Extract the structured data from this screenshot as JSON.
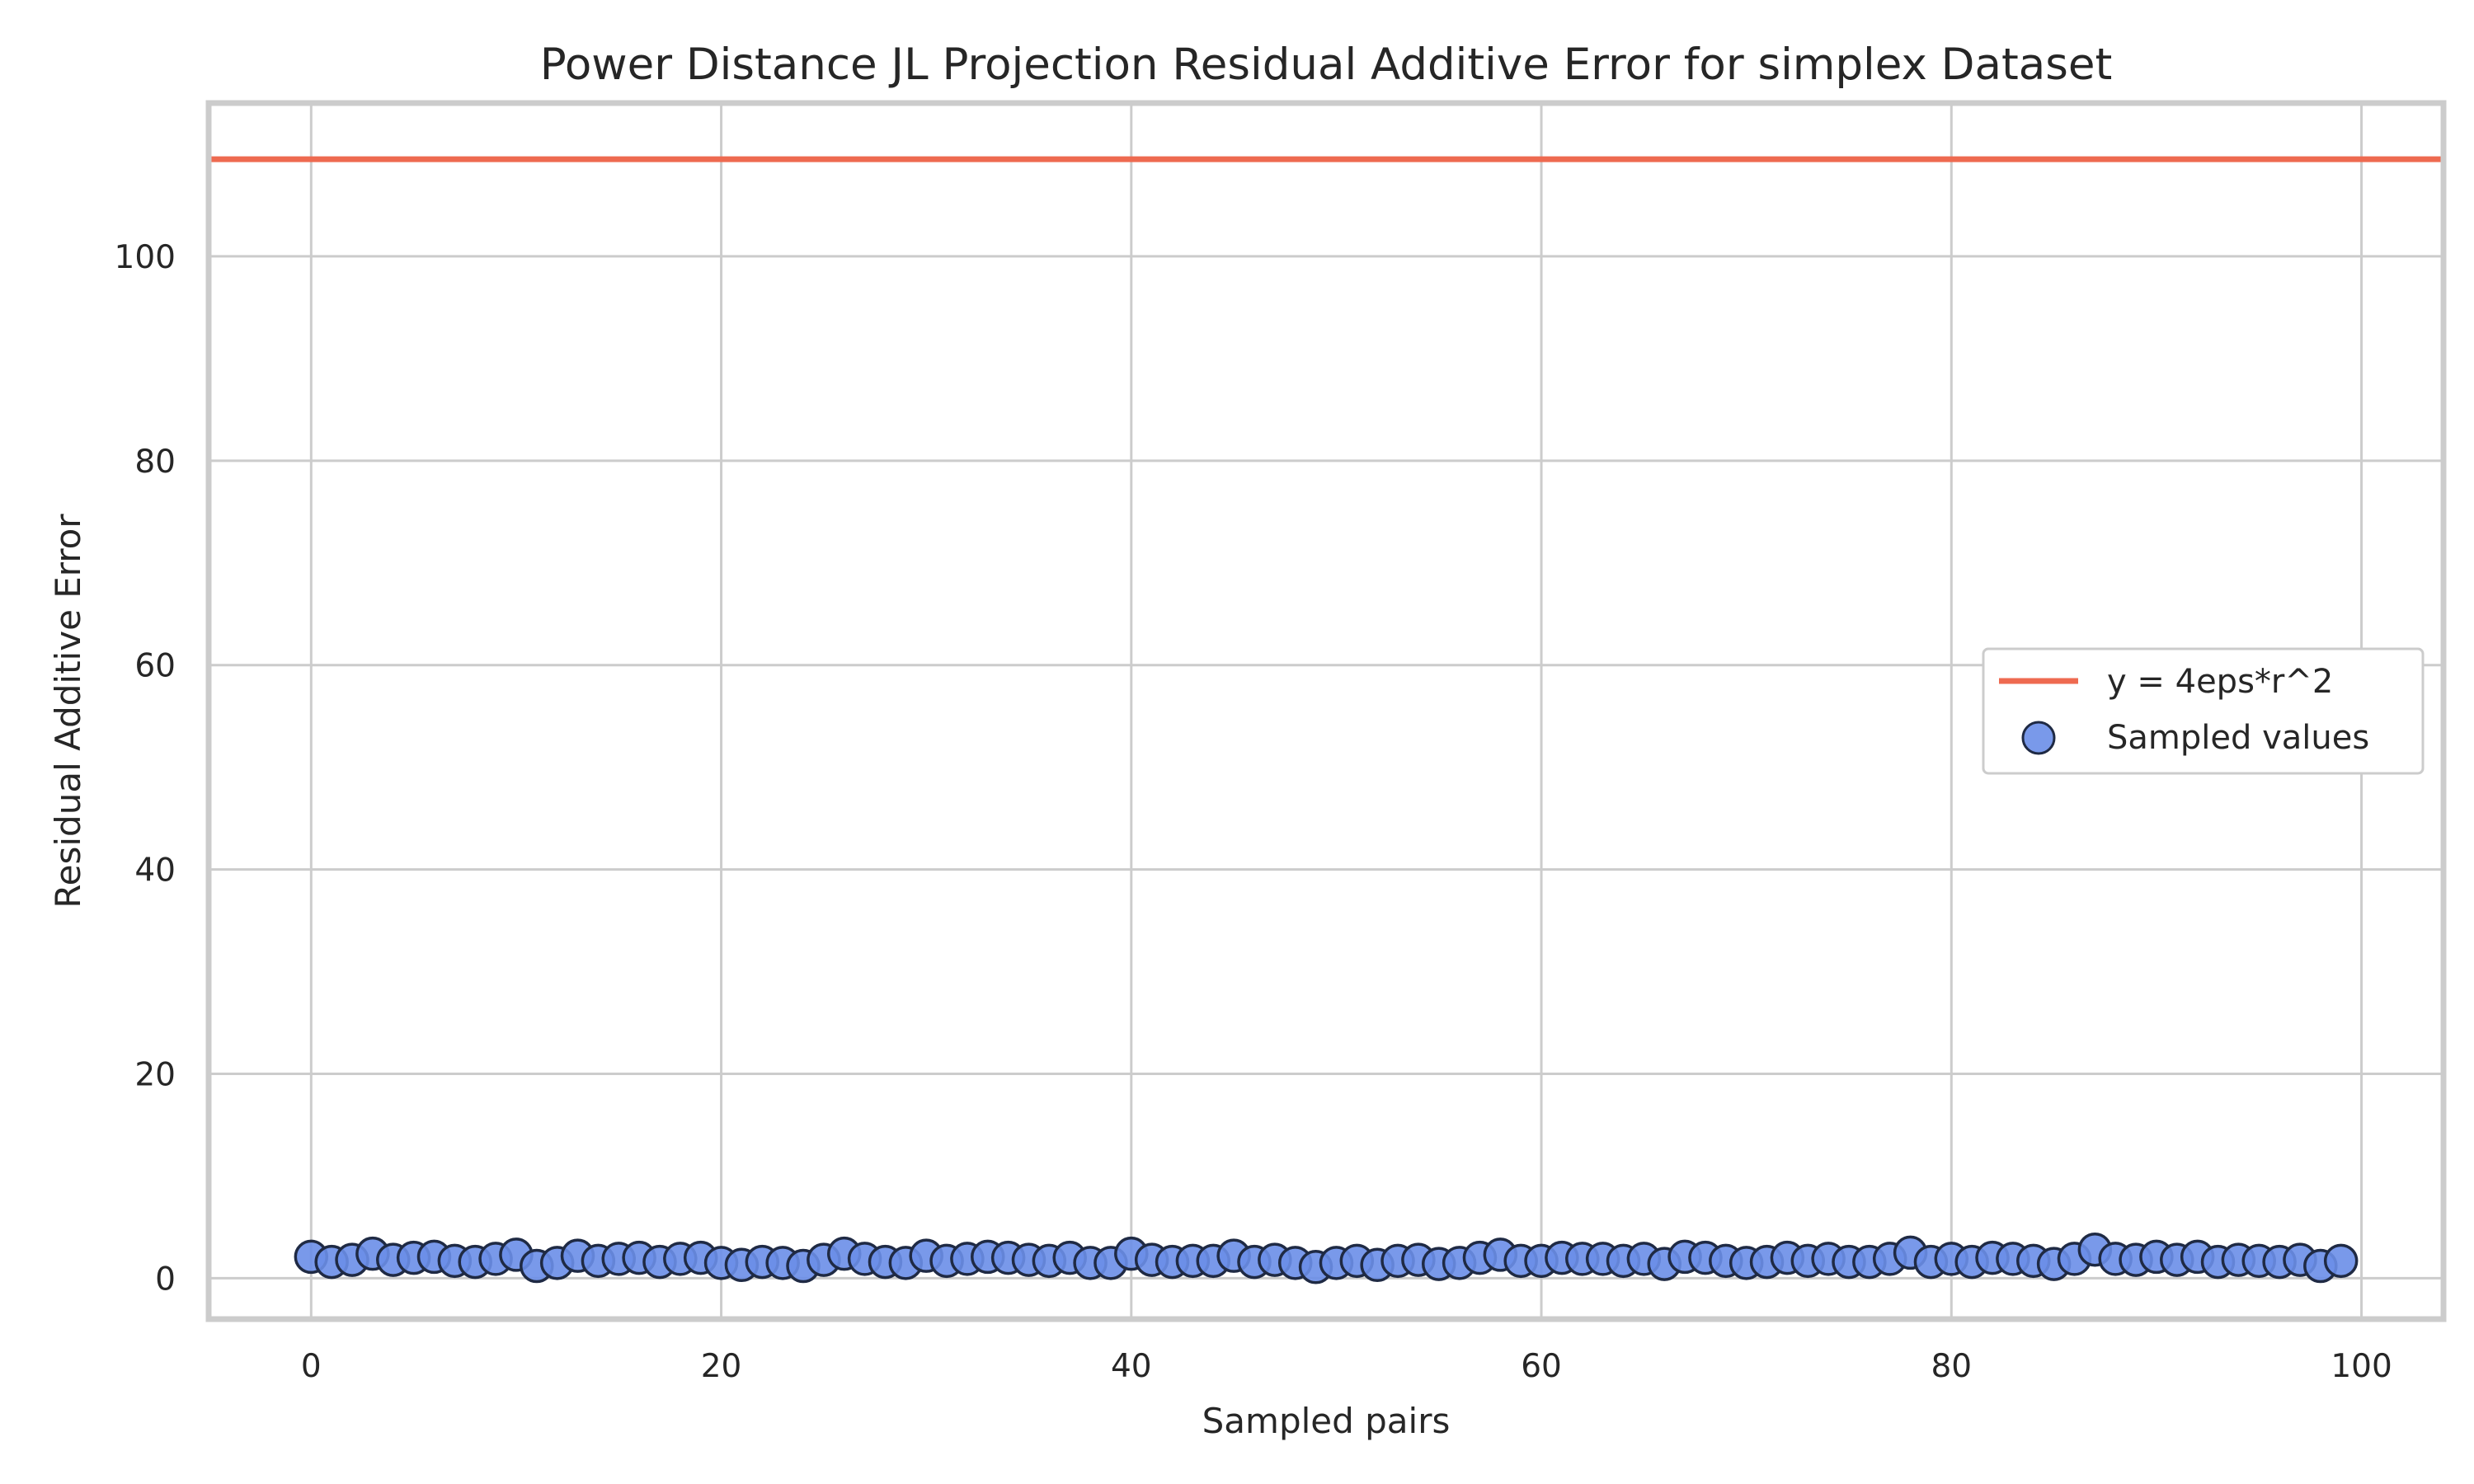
{
  "chart_data": {
    "type": "scatter",
    "title": "Power Distance JL Projection Residual Additive Error for simplex Dataset",
    "xlabel": "Sampled pairs",
    "ylabel": "Residual Additive Error",
    "xlim": [
      -5,
      104
    ],
    "ylim": [
      -4,
      115
    ],
    "xticks": [
      0,
      20,
      40,
      60,
      80,
      100
    ],
    "yticks": [
      0,
      20,
      40,
      60,
      80,
      100
    ],
    "grid": true,
    "legend_position": "center-right",
    "series": [
      {
        "name": "y = 4eps*r^2",
        "kind": "line",
        "y": 109.5,
        "color": "#ee6a50"
      },
      {
        "name": "Sampled values",
        "kind": "scatter",
        "color": "#6a8ee8",
        "edge_color": "#1f2a44",
        "x": [
          0,
          1,
          2,
          3,
          4,
          5,
          6,
          7,
          8,
          9,
          10,
          11,
          12,
          13,
          14,
          15,
          16,
          17,
          18,
          19,
          20,
          21,
          22,
          23,
          24,
          25,
          26,
          27,
          28,
          29,
          30,
          31,
          32,
          33,
          34,
          35,
          36,
          37,
          38,
          39,
          40,
          41,
          42,
          43,
          44,
          45,
          46,
          47,
          48,
          49,
          50,
          51,
          52,
          53,
          54,
          55,
          56,
          57,
          58,
          59,
          60,
          61,
          62,
          63,
          64,
          65,
          66,
          67,
          68,
          69,
          70,
          71,
          72,
          73,
          74,
          75,
          76,
          77,
          78,
          79,
          80,
          81,
          82,
          83,
          84,
          85,
          86,
          87,
          88,
          89,
          90,
          91,
          92,
          93,
          94,
          95,
          96,
          97,
          98,
          99
        ],
        "y": [
          2.1,
          1.6,
          1.8,
          2.4,
          1.8,
          2.0,
          2.1,
          1.7,
          1.6,
          1.9,
          2.3,
          1.2,
          1.5,
          2.2,
          1.7,
          1.9,
          2.0,
          1.6,
          1.9,
          2.0,
          1.5,
          1.3,
          1.6,
          1.5,
          1.2,
          1.8,
          2.4,
          1.9,
          1.6,
          1.5,
          2.2,
          1.7,
          1.9,
          2.1,
          2.0,
          1.8,
          1.7,
          2.0,
          1.5,
          1.5,
          2.4,
          1.8,
          1.6,
          1.7,
          1.7,
          2.2,
          1.6,
          1.8,
          1.5,
          1.1,
          1.5,
          1.7,
          1.3,
          1.7,
          1.8,
          1.4,
          1.5,
          2.0,
          2.3,
          1.7,
          1.7,
          2.0,
          1.9,
          1.9,
          1.7,
          1.9,
          1.4,
          2.1,
          2.0,
          1.7,
          1.5,
          1.6,
          2.0,
          1.7,
          1.9,
          1.6,
          1.6,
          1.9,
          2.5,
          1.6,
          1.9,
          1.6,
          2.0,
          1.9,
          1.7,
          1.4,
          1.9,
          2.8,
          1.9,
          1.8,
          2.1,
          1.8,
          2.1,
          1.6,
          1.8,
          1.7,
          1.6,
          1.8,
          1.2,
          1.7
        ]
      }
    ]
  }
}
